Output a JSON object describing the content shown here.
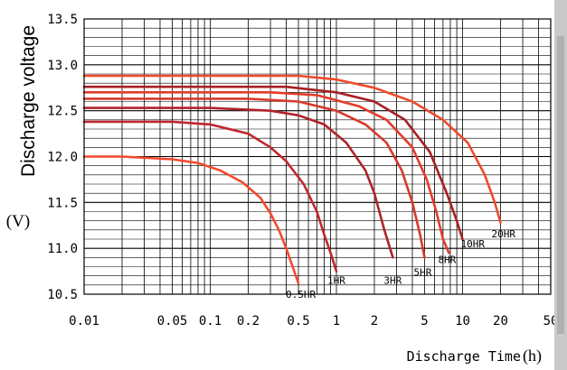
{
  "chart_data": {
    "type": "line",
    "ylabel": "Discharge voltage",
    "ylabel_unit": "(V)",
    "xlabel": "Discharge Time",
    "xlabel_unit": "(h)",
    "xscale": "log",
    "xlim": [
      0.01,
      50
    ],
    "ylim": [
      10.5,
      13.5
    ],
    "x_ticks": [
      {
        "value": 0.01,
        "label": "0.01"
      },
      {
        "value": 0.05,
        "label": "0.05"
      },
      {
        "value": 0.1,
        "label": "0.1"
      },
      {
        "value": 0.2,
        "label": "0.2"
      },
      {
        "value": 0.5,
        "label": "0.5"
      },
      {
        "value": 1,
        "label": "1"
      },
      {
        "value": 2,
        "label": "2"
      },
      {
        "value": 5,
        "label": "5"
      },
      {
        "value": 10,
        "label": "10"
      },
      {
        "value": 20,
        "label": "20"
      },
      {
        "value": 50,
        "label": "50"
      }
    ],
    "y_ticks": [
      {
        "value": 13.5,
        "label": "13.5"
      },
      {
        "value": 13.0,
        "label": "13.0"
      },
      {
        "value": 12.5,
        "label": "12.5"
      },
      {
        "value": 12.0,
        "label": "12.0"
      },
      {
        "value": 11.5,
        "label": "11.5"
      },
      {
        "value": 11.0,
        "label": "11.0"
      },
      {
        "value": 10.5,
        "label": "10.5"
      }
    ],
    "grid": true,
    "series": [
      {
        "name": "0.5HR",
        "color": "#f4492c",
        "x": [
          0.01,
          0.02,
          0.05,
          0.08,
          0.12,
          0.18,
          0.25,
          0.3,
          0.35,
          0.4,
          0.45,
          0.5
        ],
        "y": [
          12.0,
          12.0,
          11.97,
          11.93,
          11.85,
          11.72,
          11.55,
          11.38,
          11.2,
          11.0,
          10.8,
          10.62
        ],
        "label_at": [
          0.5,
          10.6
        ]
      },
      {
        "name": "1HR",
        "color": "#c1272d",
        "x": [
          0.01,
          0.05,
          0.1,
          0.2,
          0.3,
          0.4,
          0.55,
          0.7,
          0.8,
          0.9,
          1.0
        ],
        "y": [
          12.38,
          12.38,
          12.35,
          12.25,
          12.1,
          11.95,
          11.7,
          11.4,
          11.15,
          10.95,
          10.75
        ],
        "label_at": [
          1.0,
          10.75
        ]
      },
      {
        "name": "3HR",
        "color": "#b0232a",
        "x": [
          0.01,
          0.1,
          0.3,
          0.5,
          0.8,
          1.2,
          1.7,
          2.0,
          2.4,
          2.8
        ],
        "y": [
          12.53,
          12.53,
          12.5,
          12.45,
          12.35,
          12.15,
          11.85,
          11.6,
          11.2,
          10.9
        ],
        "label_at": [
          2.8,
          10.75
        ]
      },
      {
        "name": "5HR",
        "color": "#d63a2b",
        "x": [
          0.01,
          0.2,
          0.5,
          1.0,
          1.7,
          2.5,
          3.3,
          4.0,
          4.6,
          5.0
        ],
        "y": [
          12.63,
          12.63,
          12.6,
          12.5,
          12.35,
          12.15,
          11.85,
          11.5,
          11.15,
          10.9
        ],
        "label_at": [
          5.0,
          10.78
        ]
      },
      {
        "name": "8HR",
        "color": "#e23c2c",
        "x": [
          0.01,
          0.3,
          0.7,
          1.5,
          2.5,
          4.0,
          5.2,
          6.2,
          7.0,
          7.8
        ],
        "y": [
          12.7,
          12.7,
          12.67,
          12.55,
          12.4,
          12.1,
          11.75,
          11.4,
          11.1,
          10.95
        ],
        "label_at": [
          7.8,
          10.88
        ]
      },
      {
        "name": "10HR",
        "color": "#a81f24",
        "x": [
          0.01,
          0.4,
          1.0,
          2.0,
          3.5,
          5.5,
          7.5,
          9.0,
          10.0
        ],
        "y": [
          12.76,
          12.76,
          12.7,
          12.6,
          12.4,
          12.05,
          11.6,
          11.3,
          11.1
        ],
        "label_at": [
          10.0,
          11.05
        ]
      },
      {
        "name": "20HR",
        "color": "#ee4a2a",
        "x": [
          0.01,
          0.5,
          1.0,
          2.0,
          4.0,
          7.0,
          11.0,
          15.0,
          18.0,
          20.0
        ],
        "y": [
          12.88,
          12.88,
          12.84,
          12.75,
          12.6,
          12.4,
          12.15,
          11.8,
          11.5,
          11.28
        ],
        "label_at": [
          20.0,
          11.18
        ]
      }
    ]
  }
}
